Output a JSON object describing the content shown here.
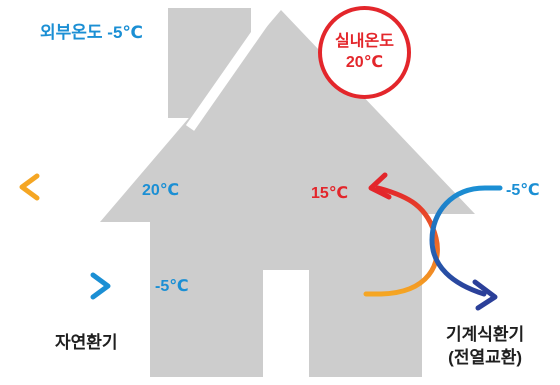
{
  "outside_temp": "외부온도 -5℃",
  "badge": {
    "line1": "실내온도",
    "line2": "20℃"
  },
  "natural": {
    "warm_temp": "20℃",
    "cold_temp": "-5℃",
    "label": "자연환기"
  },
  "mechanical": {
    "warm_temp": "15℃",
    "cold_temp": "-5℃",
    "label_line1": "기계식환기",
    "label_line2": "(전열교환)"
  },
  "colors": {
    "house": "#cdcdcd",
    "blue": "#1b8fd4",
    "red": "#e3262b",
    "orange": "#f5a623",
    "navy": "#2b3f99"
  }
}
